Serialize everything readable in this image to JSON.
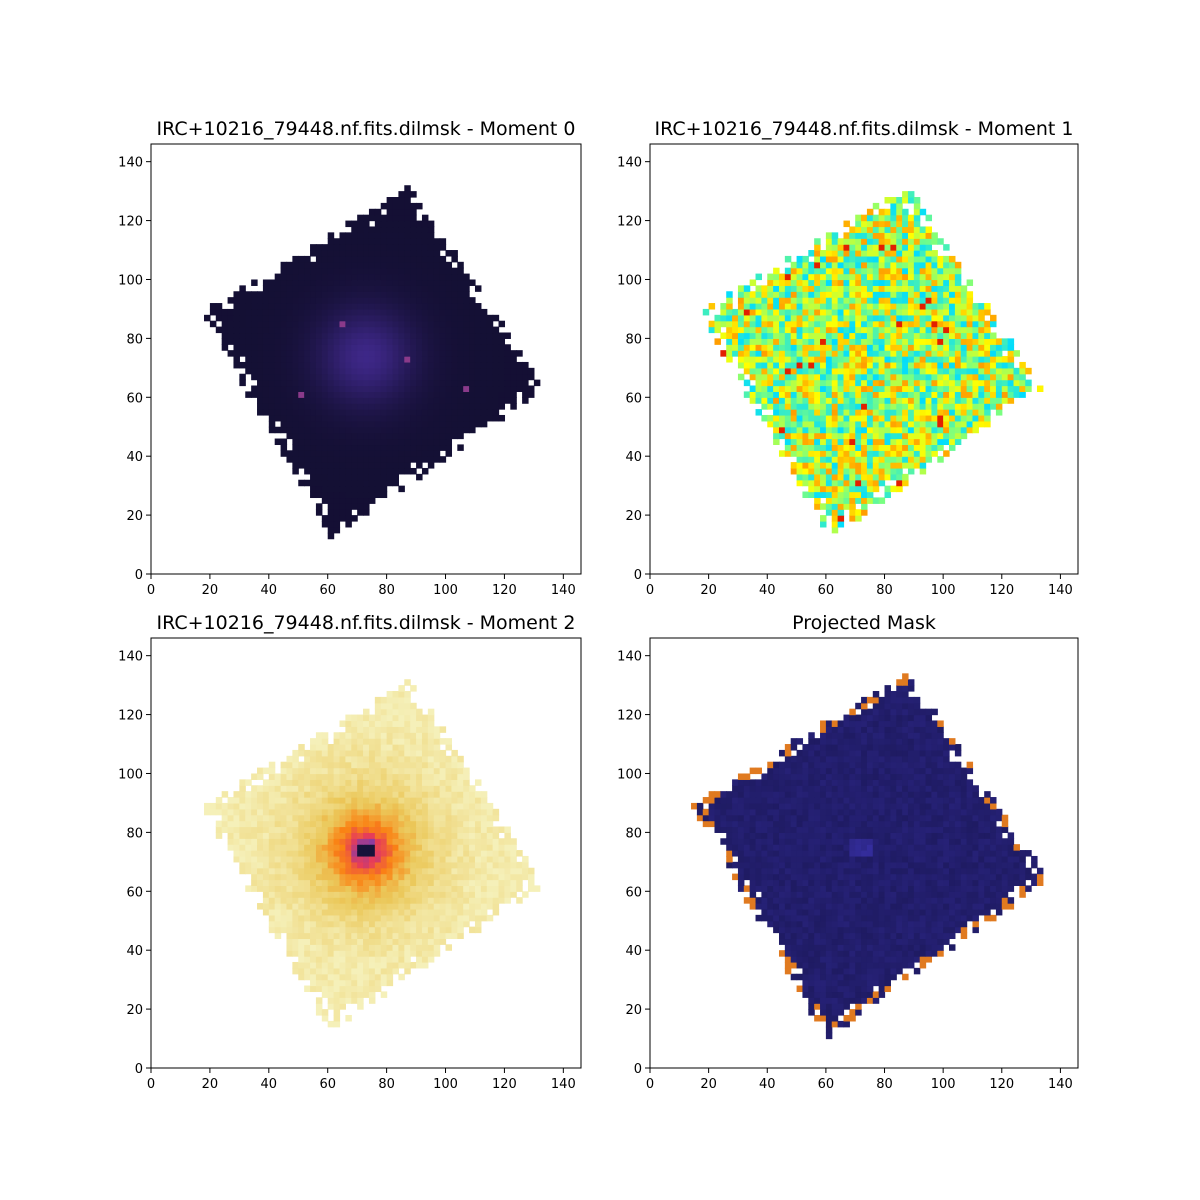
{
  "figure": {
    "background": "#ffffff"
  },
  "chart_data": [
    {
      "type": "heatmap",
      "title": "IRC+10216_79448.nf.fits.dilmsk - Moment 0",
      "colormap": "dark-purple",
      "xlim": [
        0,
        146
      ],
      "ylim": [
        0,
        146
      ],
      "xticks": [
        "0",
        "20",
        "40",
        "60",
        "80",
        "100",
        "120",
        "140"
      ],
      "yticks": [
        "0",
        "20",
        "40",
        "60",
        "80",
        "100",
        "120",
        "140"
      ],
      "footprint_corners": [
        [
          17,
          89
        ],
        [
          88,
          132
        ],
        [
          134,
          63
        ],
        [
          61,
          12
        ]
      ],
      "peak": [
        73,
        74
      ],
      "grid": false
    },
    {
      "type": "heatmap",
      "title": "IRC+10216_79448.nf.fits.dilmsk - Moment 1",
      "colormap": "jet",
      "xlim": [
        0,
        146
      ],
      "ylim": [
        0,
        146
      ],
      "xticks": [
        "0",
        "20",
        "40",
        "60",
        "80",
        "100",
        "120",
        "140"
      ],
      "yticks": [
        "0",
        "20",
        "40",
        "60",
        "80",
        "100",
        "120",
        "140"
      ],
      "footprint_corners": [
        [
          17,
          89
        ],
        [
          88,
          132
        ],
        [
          134,
          63
        ],
        [
          61,
          12
        ]
      ],
      "grid": false
    },
    {
      "type": "heatmap",
      "title": "IRC+10216_79448.nf.fits.dilmsk - Moment 2",
      "colormap": "cmr-ember",
      "xlim": [
        0,
        146
      ],
      "ylim": [
        0,
        146
      ],
      "xticks": [
        "0",
        "20",
        "40",
        "60",
        "80",
        "100",
        "120",
        "140"
      ],
      "yticks": [
        "0",
        "20",
        "40",
        "60",
        "80",
        "100",
        "120",
        "140"
      ],
      "footprint_corners": [
        [
          17,
          89
        ],
        [
          88,
          132
        ],
        [
          134,
          63
        ],
        [
          61,
          12
        ]
      ],
      "peak": [
        73,
        74
      ],
      "grid": false
    },
    {
      "type": "heatmap",
      "title": "Projected Mask",
      "colormap": "dark-blue",
      "xlim": [
        0,
        146
      ],
      "ylim": [
        0,
        146
      ],
      "xticks": [
        "0",
        "20",
        "40",
        "60",
        "80",
        "100",
        "120",
        "140"
      ],
      "yticks": [
        "0",
        "20",
        "40",
        "60",
        "80",
        "100",
        "120",
        "140"
      ],
      "footprint_corners": [
        [
          14,
          90
        ],
        [
          88,
          135
        ],
        [
          136,
          64
        ],
        [
          60,
          10
        ]
      ],
      "peak": [
        72,
        75
      ],
      "grid": false
    }
  ]
}
